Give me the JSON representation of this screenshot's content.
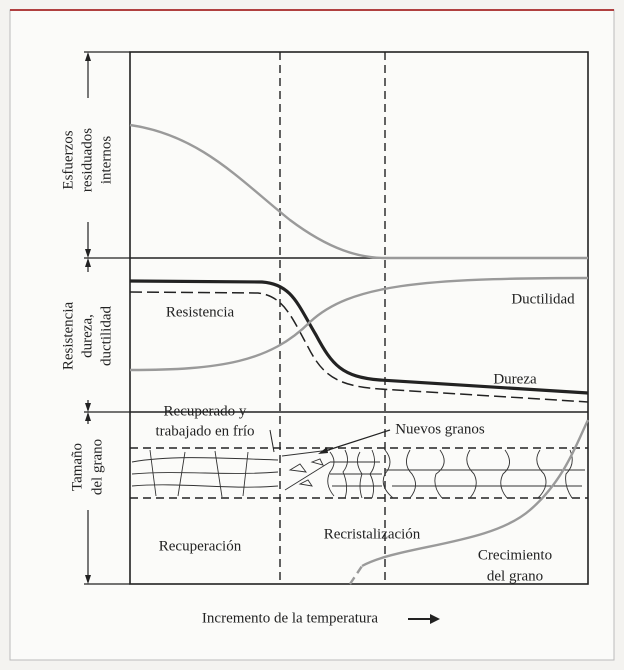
{
  "axis_labels": {
    "stress": [
      "Esfuerzos",
      "residuados",
      "internos"
    ],
    "properties": [
      "Resistencia",
      "dureza,",
      "ductilidad"
    ],
    "grain": [
      "Tamaño",
      "del grano"
    ]
  },
  "curves": {
    "strength": "Resistencia",
    "ductility": "Ductilidad",
    "hardness": "Dureza"
  },
  "grain_notes": {
    "recovered": [
      "Recuperado y",
      "trabajado en frío"
    ],
    "new_grains": "Nuevos granos"
  },
  "stages": {
    "recovery": "Recuperación",
    "recrystallization": "Recristalización",
    "growth": [
      "Crecimiento",
      "del grano"
    ]
  },
  "x_label": "Incremento de la temperatura"
}
